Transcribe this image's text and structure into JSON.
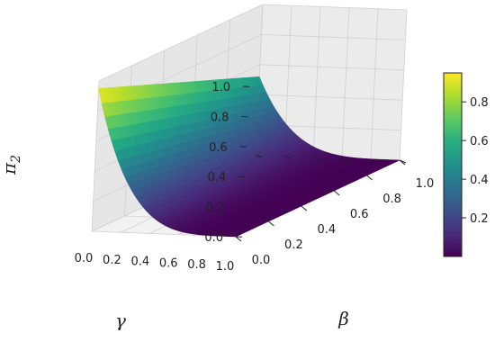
{
  "chart_data": {
    "type": "surface3d",
    "title": "",
    "xlabel": "β",
    "ylabel": "γ",
    "zlabel": "π",
    "zlabel_sub": "2",
    "x_ticks": [
      "0.0",
      "0.2",
      "0.4",
      "0.6",
      "0.8",
      "1.0"
    ],
    "y_ticks": [
      "0.0",
      "0.2",
      "0.4",
      "0.6",
      "0.8",
      "1.0"
    ],
    "z_ticks": [
      "0.0",
      "0.2",
      "0.4",
      "0.6",
      "0.8",
      "1.0"
    ],
    "xlim": [
      0,
      1
    ],
    "ylim": [
      0,
      1
    ],
    "zlim": [
      0,
      1
    ],
    "grid": true,
    "colormap": "viridis",
    "colorbar": {
      "ticks": [
        "0.2",
        "0.4",
        "0.6",
        "0.8"
      ],
      "range": [
        0,
        0.95
      ]
    },
    "surface_samples": {
      "beta": [
        0.0,
        0.2,
        0.4,
        0.6,
        0.8,
        1.0
      ],
      "gamma": [
        0.0,
        0.2,
        0.4,
        0.6,
        0.8,
        1.0
      ],
      "pi2_at_gamma0": [
        0.95,
        0.84,
        0.74,
        0.65,
        0.58,
        0.52
      ],
      "pi2_at_gamma0.4": [
        0.19,
        0.12,
        0.08,
        0.06,
        0.04,
        0.03
      ],
      "pi2_at_gamma1": [
        0.0,
        0.0,
        0.0,
        0.0,
        0.0,
        0.0
      ]
    },
    "colors": {
      "grid": "#d0d0d0",
      "pane": "#f2f2f2",
      "edge": "#1a1a1a"
    }
  }
}
